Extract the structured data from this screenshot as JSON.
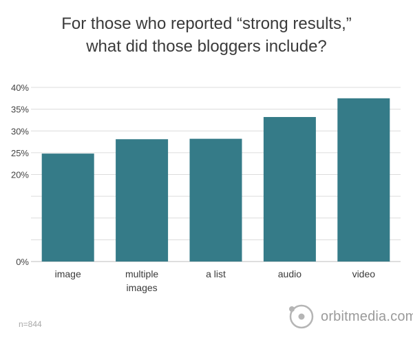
{
  "title_line1": "For those who reported “strong results,”",
  "title_line2": "what did those bloggers include?",
  "footnote": "n=844",
  "brand": "orbitmedia.com",
  "colors": {
    "bar": "#357b88",
    "grid": "#dcdcdc",
    "axis_text": "#444444",
    "brand": "#9a9a9a"
  },
  "chart_data": {
    "type": "bar",
    "title": "For those who reported “strong results,” what did those bloggers include?",
    "categories": [
      "image",
      "multiple images",
      "a list",
      "audio",
      "video"
    ],
    "category_lines": [
      [
        "image"
      ],
      [
        "multiple",
        "images"
      ],
      [
        "a list"
      ],
      [
        "audio"
      ],
      [
        "video"
      ]
    ],
    "values": [
      24.8,
      28.1,
      28.2,
      33.2,
      37.5
    ],
    "ylim": [
      0,
      40
    ],
    "yticks": [
      0,
      5,
      10,
      15,
      20,
      25,
      30,
      35,
      40
    ],
    "yticks_labeled": [
      0,
      20,
      25,
      30,
      35,
      40
    ],
    "tick_suffix": "%",
    "grid": true
  }
}
